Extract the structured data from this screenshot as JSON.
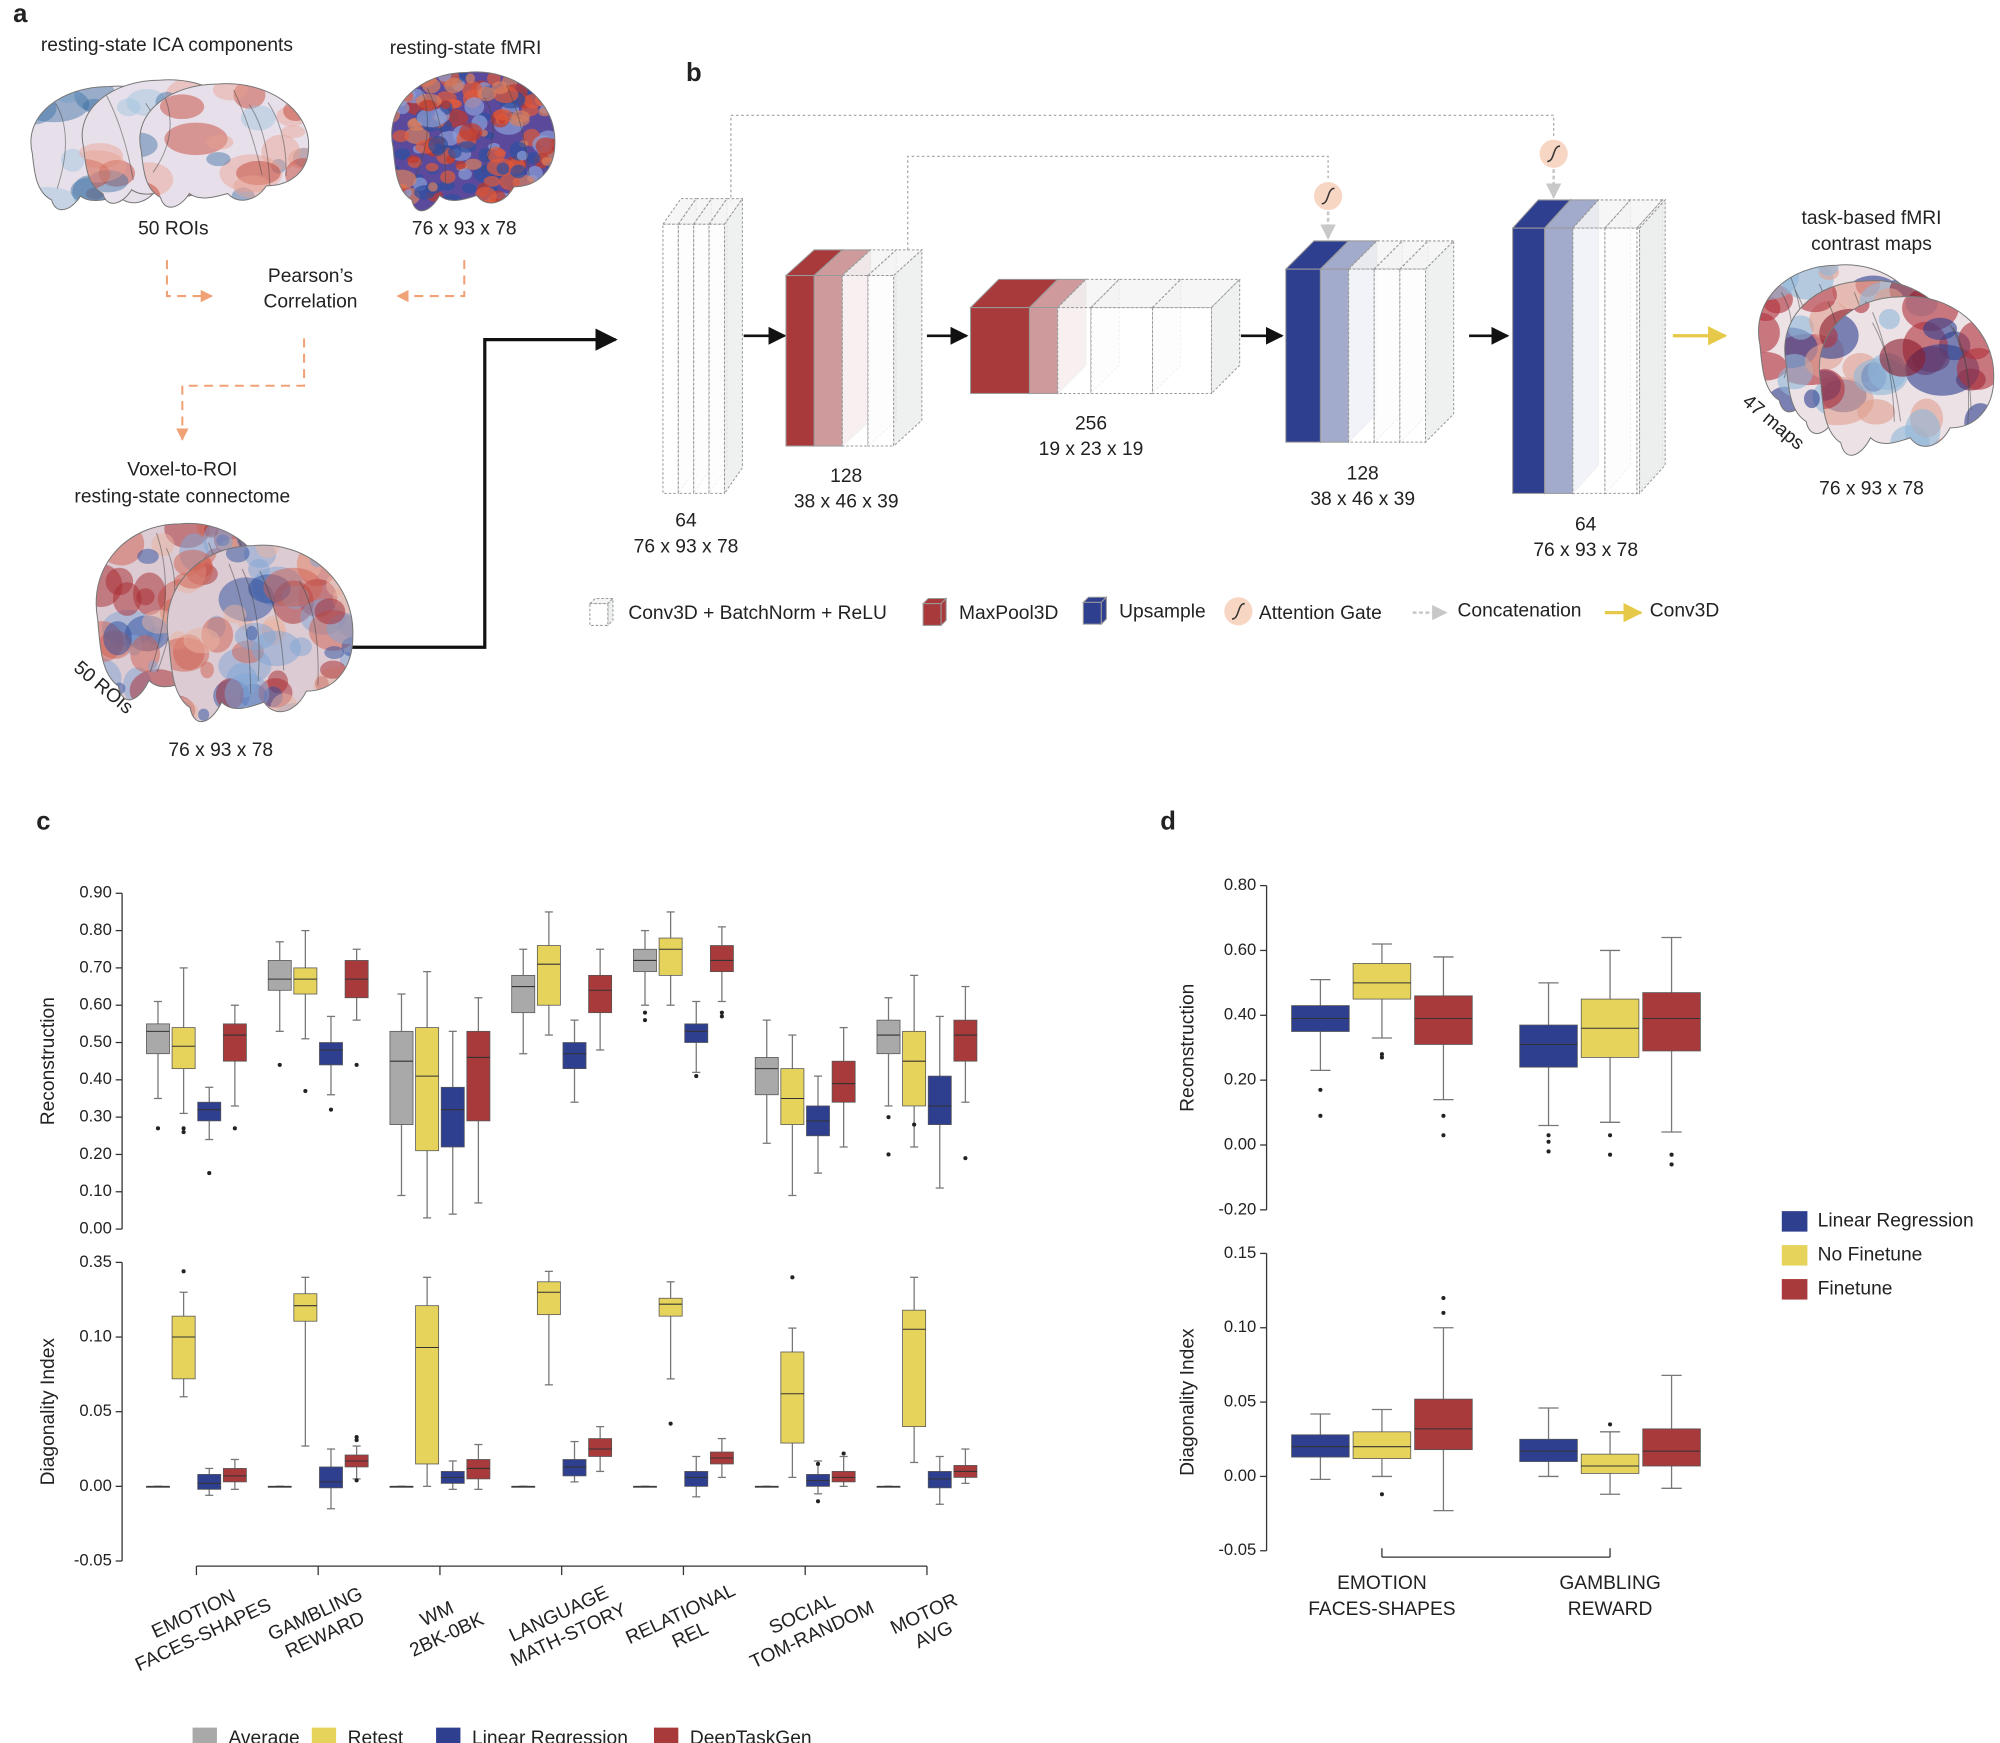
{
  "panels": [
    "a",
    "b",
    "c",
    "d"
  ],
  "diagram": {
    "a": {
      "ica_title": "resting-state ICA components",
      "ica_label": "50 ROIs",
      "fmri_title": "resting-state fMRI",
      "fmri_label": "76 x 93 x 78",
      "correlation": [
        "Pearson’s",
        "Correlation"
      ],
      "connectome_title": [
        "Voxel-to-ROI",
        "resting-state connectome"
      ],
      "connectome_rois": "50 ROIs",
      "connectome_label": "76 x 93 x 78"
    },
    "b": {
      "blocks": [
        {
          "channels": 64,
          "size": "76 x 93 x 78"
        },
        {
          "channels": 128,
          "size": "38 x 46 x 39"
        },
        {
          "channels": 256,
          "size": "19 x 23 x 19"
        },
        {
          "channels": 128,
          "size": "38 x 46 x 39"
        },
        {
          "channels": 64,
          "size": "76 x 93 x 78"
        }
      ],
      "output_title": [
        "task-based fMRI",
        "contrast maps"
      ],
      "output_maps": "47 maps",
      "output_size": "76 x 93 x 78",
      "legend": [
        "Conv3D + BatchNorm + ReLU",
        "MaxPool3D",
        "Upsample",
        "Attention Gate",
        "Concatenation",
        "Conv3D"
      ]
    }
  },
  "chart_data": [
    {
      "type": "box",
      "ylabel": "Reconstruction",
      "ylim": [
        0,
        0.9
      ],
      "yticks": [
        {
          "value": 0,
          "label": "0.00"
        },
        {
          "value": 0.1,
          "label": "0.10"
        },
        {
          "value": 0.2,
          "label": "0.20"
        },
        {
          "value": 0.3,
          "label": "0.30"
        },
        {
          "value": 0.4,
          "label": "0.40"
        },
        {
          "value": 0.5,
          "label": "0.50"
        },
        {
          "value": 0.6,
          "label": "0.60"
        },
        {
          "value": 0.7,
          "label": "0.70"
        },
        {
          "value": 0.8,
          "label": "0.80"
        },
        {
          "value": 0.9,
          "label": "0.90"
        }
      ],
      "series": [
        {
          "name": "Average",
          "color": "#a9a9a9",
          "min": [
            0.35,
            0.53,
            0.09,
            0.47,
            0.6,
            0.23,
            0.33
          ],
          "q1": [
            0.47,
            0.64,
            0.28,
            0.58,
            0.69,
            0.36,
            0.47
          ],
          "median": [
            0.53,
            0.67,
            0.45,
            0.65,
            0.72,
            0.43,
            0.52
          ],
          "q3": [
            0.55,
            0.72,
            0.53,
            0.68,
            0.75,
            0.46,
            0.56
          ],
          "max": [
            0.61,
            0.77,
            0.63,
            0.75,
            0.8,
            0.56,
            0.62
          ],
          "outliers": [
            [
              0.27
            ],
            [
              0.44
            ],
            [],
            [],
            [
              0.58,
              0.56
            ],
            [],
            [
              0.3,
              0.2
            ]
          ]
        },
        {
          "name": "Retest",
          "color": "#e6d35c",
          "min": [
            0.31,
            0.51,
            0.03,
            0.52,
            0.6,
            0.09,
            0.22
          ],
          "q1": [
            0.43,
            0.63,
            0.21,
            0.6,
            0.68,
            0.28,
            0.33
          ],
          "median": [
            0.49,
            0.67,
            0.41,
            0.71,
            0.75,
            0.35,
            0.45
          ],
          "q3": [
            0.54,
            0.7,
            0.54,
            0.76,
            0.78,
            0.43,
            0.53
          ],
          "max": [
            0.7,
            0.8,
            0.69,
            0.85,
            0.85,
            0.52,
            0.68
          ],
          "outliers": [
            [
              0.27,
              0.26
            ],
            [
              0.37
            ],
            [],
            [],
            [],
            [],
            [
              0.28
            ]
          ]
        },
        {
          "name": "Linear Regression",
          "color": "#2f3f8f",
          "min": [
            0.24,
            0.36,
            0.04,
            0.34,
            0.42,
            0.15,
            0.11
          ],
          "q1": [
            0.29,
            0.44,
            0.22,
            0.43,
            0.5,
            0.25,
            0.28
          ],
          "median": [
            0.32,
            0.48,
            0.32,
            0.47,
            0.53,
            0.29,
            0.33
          ],
          "q3": [
            0.34,
            0.5,
            0.38,
            0.5,
            0.55,
            0.33,
            0.41
          ],
          "max": [
            0.38,
            0.57,
            0.53,
            0.56,
            0.61,
            0.41,
            0.57
          ],
          "outliers": [
            [
              0.15
            ],
            [
              0.32
            ],
            [],
            [],
            [
              0.41
            ],
            [],
            []
          ]
        },
        {
          "name": "DeepTaskGen",
          "color": "#a83a3c",
          "min": [
            0.33,
            0.56,
            0.07,
            0.48,
            0.61,
            0.22,
            0.34
          ],
          "q1": [
            0.45,
            0.62,
            0.29,
            0.58,
            0.69,
            0.34,
            0.45
          ],
          "median": [
            0.52,
            0.67,
            0.46,
            0.64,
            0.72,
            0.39,
            0.52
          ],
          "q3": [
            0.55,
            0.72,
            0.53,
            0.68,
            0.76,
            0.45,
            0.56
          ],
          "max": [
            0.6,
            0.75,
            0.62,
            0.75,
            0.81,
            0.54,
            0.65
          ],
          "outliers": [
            [
              0.27
            ],
            [
              0.44
            ],
            [],
            [],
            [
              0.58,
              0.57
            ],
            [],
            [
              0.19
            ]
          ]
        }
      ]
    },
    {
      "type": "box",
      "ylabel": "Diagonality Index",
      "ylim": [
        -0.05,
        0.35
      ],
      "yticks": [
        {
          "value": -0.05,
          "label": "-0.05"
        },
        {
          "value": 0,
          "label": "0.00"
        },
        {
          "value": 0.05,
          "label": "0.05"
        },
        {
          "value": 0.1,
          "label": "0.10"
        },
        {
          "value": 0.35,
          "label": "0.35"
        }
      ],
      "categories": [
        [
          "EMOTION",
          "FACES-SHAPES"
        ],
        [
          "GAMBLING",
          "REWARD"
        ],
        [
          "WM",
          "2BK-0BK"
        ],
        [
          "LANGUAGE",
          "MATH-STORY"
        ],
        [
          "RELATIONAL",
          "REL"
        ],
        [
          "SOCIAL",
          "TOM-RANDOM"
        ],
        [
          "MOTOR",
          "AVG"
        ]
      ],
      "series": [
        {
          "color": "#a9a9a9",
          "min": [
            0,
            0,
            0,
            0,
            0,
            0,
            0
          ],
          "q1": [
            0,
            0,
            0,
            0,
            0,
            0,
            0
          ],
          "median": [
            0,
            0,
            0,
            0,
            0,
            0,
            0
          ],
          "q3": [
            0,
            0,
            0,
            0,
            0,
            0,
            0
          ],
          "max": [
            0,
            0,
            0,
            0,
            0,
            0,
            0
          ],
          "outliers": [
            [],
            [],
            [],
            [],
            [],
            [],
            []
          ]
        },
        {
          "color": "#e6d35c",
          "min": [
            0.06,
            0.027,
            0.0,
            0.068,
            0.072,
            0.006,
            0.016
          ],
          "q1": [
            0.072,
            0.153,
            0.015,
            0.175,
            0.17,
            0.029,
            0.04
          ],
          "median": [
            0.1,
            0.205,
            0.093,
            0.25,
            0.21,
            0.062,
            0.126
          ],
          "q3": [
            0.17,
            0.245,
            0.205,
            0.285,
            0.23,
            0.09,
            0.19
          ],
          "max": [
            0.25,
            0.3,
            0.3,
            0.32,
            0.285,
            0.13,
            0.3
          ],
          "outliers": [
            [
              0.32
            ],
            [],
            [],
            [],
            [
              0.042
            ],
            [
              0.3
            ],
            []
          ]
        },
        {
          "color": "#2f3f8f",
          "min": [
            -0.006,
            -0.015,
            -0.002,
            0.003,
            -0.007,
            -0.005,
            -0.012
          ],
          "q1": [
            -0.002,
            -0.001,
            0.002,
            0.007,
            0.0,
            0.0,
            -0.001
          ],
          "median": [
            0.002,
            0.003,
            0.006,
            0.013,
            0.006,
            0.004,
            0.005
          ],
          "q3": [
            0.008,
            0.013,
            0.01,
            0.018,
            0.01,
            0.008,
            0.01
          ],
          "max": [
            0.012,
            0.025,
            0.017,
            0.03,
            0.02,
            0.017,
            0.02
          ],
          "outliers": [
            [],
            [],
            [],
            [],
            [],
            [
              -0.01,
              0.015
            ],
            []
          ]
        },
        {
          "color": "#a83a3c",
          "min": [
            -0.002,
            0.005,
            -0.002,
            0.01,
            0.006,
            0.0,
            0.002
          ],
          "q1": [
            0.003,
            0.013,
            0.005,
            0.02,
            0.015,
            0.003,
            0.006
          ],
          "median": [
            0.007,
            0.017,
            0.012,
            0.025,
            0.019,
            0.006,
            0.01
          ],
          "q3": [
            0.012,
            0.021,
            0.018,
            0.032,
            0.023,
            0.01,
            0.014
          ],
          "max": [
            0.018,
            0.027,
            0.028,
            0.04,
            0.032,
            0.02,
            0.025
          ],
          "outliers": [
            [],
            [
              0.031,
              0.033,
              0.004
            ],
            [],
            [],
            [],
            [
              0.022
            ],
            []
          ]
        }
      ]
    },
    {
      "type": "box",
      "ylabel": "Reconstruction",
      "ylim": [
        -0.2,
        0.8
      ],
      "yticks": [
        {
          "value": -0.2,
          "label": "-0.20"
        },
        {
          "value": 0,
          "label": "0.00"
        },
        {
          "value": 0.2,
          "label": "0.20"
        },
        {
          "value": 0.4,
          "label": "0.40"
        },
        {
          "value": 0.6,
          "label": "0.60"
        },
        {
          "value": 0.8,
          "label": "0.80"
        }
      ],
      "series": [
        {
          "name": "Linear Regression",
          "color": "#2f3f8f",
          "min": [
            0.23,
            0.06
          ],
          "q1": [
            0.35,
            0.24
          ],
          "median": [
            0.39,
            0.31
          ],
          "q3": [
            0.43,
            0.37
          ],
          "max": [
            0.51,
            0.5
          ],
          "outliers": [
            [
              0.17,
              0.09
            ],
            [
              0.03,
              0.01,
              -0.02
            ]
          ]
        },
        {
          "name": "No Finetune",
          "color": "#e6d35c",
          "min": [
            0.33,
            0.07
          ],
          "q1": [
            0.45,
            0.27
          ],
          "median": [
            0.5,
            0.36
          ],
          "q3": [
            0.56,
            0.45
          ],
          "max": [
            0.62,
            0.6
          ],
          "outliers": [
            [
              0.28,
              0.27
            ],
            [
              0.03,
              -0.03
            ]
          ]
        },
        {
          "name": "Finetune",
          "color": "#a83a3c",
          "min": [
            0.14,
            0.04
          ],
          "q1": [
            0.31,
            0.29
          ],
          "median": [
            0.39,
            0.39
          ],
          "q3": [
            0.46,
            0.47
          ],
          "max": [
            0.58,
            0.64
          ],
          "outliers": [
            [
              0.09,
              0.03
            ],
            [
              -0.03,
              -0.06
            ]
          ]
        }
      ]
    },
    {
      "type": "box",
      "ylabel": "Diagonality Index",
      "ylim": [
        -0.05,
        0.15
      ],
      "yticks": [
        {
          "value": -0.05,
          "label": "-0.05"
        },
        {
          "value": 0,
          "label": "0.00"
        },
        {
          "value": 0.05,
          "label": "0.05"
        },
        {
          "value": 0.1,
          "label": "0.10"
        },
        {
          "value": 0.15,
          "label": "0.15"
        }
      ],
      "categories": [
        [
          "EMOTION",
          "FACES-SHAPES"
        ],
        [
          "GAMBLING",
          "REWARD"
        ]
      ],
      "series": [
        {
          "color": "#2f3f8f",
          "min": [
            -0.002,
            0.0
          ],
          "q1": [
            0.013,
            0.01
          ],
          "median": [
            0.02,
            0.017
          ],
          "q3": [
            0.028,
            0.025
          ],
          "max": [
            0.042,
            0.046
          ],
          "outliers": [
            [],
            []
          ]
        },
        {
          "color": "#e6d35c",
          "min": [
            0.0,
            -0.012
          ],
          "q1": [
            0.012,
            0.002
          ],
          "median": [
            0.02,
            0.007
          ],
          "q3": [
            0.03,
            0.015
          ],
          "max": [
            0.045,
            0.03
          ],
          "outliers": [
            [
              -0.012
            ],
            [
              0.035
            ]
          ]
        },
        {
          "color": "#a83a3c",
          "min": [
            -0.023,
            -0.008
          ],
          "q1": [
            0.018,
            0.007
          ],
          "median": [
            0.032,
            0.017
          ],
          "q3": [
            0.052,
            0.032
          ],
          "max": [
            0.1,
            0.068
          ],
          "outliers": [
            [
              0.11,
              0.12
            ],
            []
          ]
        }
      ]
    }
  ]
}
